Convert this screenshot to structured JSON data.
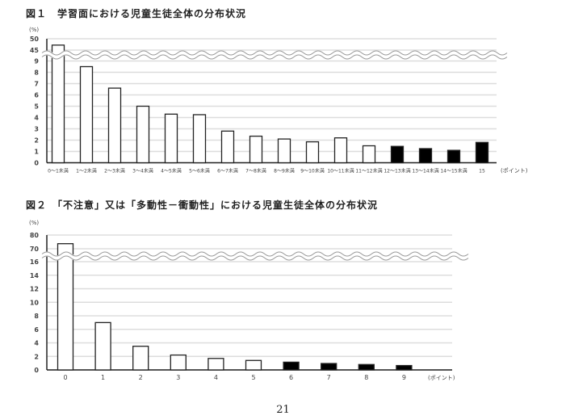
{
  "page_number": "21",
  "chart_data": [
    {
      "type": "bar",
      "title": "図１　学習面における児童生徒全体の分布状況",
      "ylabel": "(%)",
      "xlabel": "(ポイント)",
      "broken_axis": true,
      "y_lower_ticks": [
        0,
        1,
        2,
        3,
        4,
        5,
        6,
        7,
        8,
        9
      ],
      "y_upper_ticks": [
        45,
        50
      ],
      "grid": true,
      "categories": [
        "0～1未満",
        "1～2未満",
        "2～3未満",
        "3～4未満",
        "4～5未満",
        "5～6未満",
        "6～7未満",
        "7～8未満",
        "8～9未満",
        "9～10未満",
        "10～11未満",
        "11～12未満",
        "12～13未満",
        "13～14未満",
        "14～15未満",
        "15"
      ],
      "values": [
        47.2,
        8.5,
        6.6,
        5.0,
        4.3,
        4.25,
        2.8,
        2.35,
        2.1,
        1.85,
        2.2,
        1.5,
        1.45,
        1.25,
        1.1,
        1.8
      ],
      "fill": [
        "white",
        "white",
        "white",
        "white",
        "white",
        "white",
        "white",
        "white",
        "white",
        "white",
        "white",
        "white",
        "black",
        "black",
        "black",
        "black"
      ]
    },
    {
      "type": "bar",
      "title": "図２　「不注意」又は「多動性－衝動性」における児童生徒全体の分布状況",
      "ylabel": "(%)",
      "xlabel": "(ポイント)",
      "broken_axis": true,
      "y_lower_ticks": [
        0,
        2,
        4,
        6,
        8,
        10,
        12,
        14,
        16
      ],
      "y_upper_ticks": [
        70,
        80
      ],
      "grid": true,
      "categories": [
        "0",
        "1",
        "2",
        "3",
        "4",
        "5",
        "6",
        "7",
        "8",
        "9"
      ],
      "values": [
        73.7,
        7.0,
        3.5,
        2.2,
        1.7,
        1.4,
        1.15,
        0.95,
        0.8,
        0.65
      ],
      "fill": [
        "white",
        "white",
        "white",
        "white",
        "white",
        "white",
        "black",
        "black",
        "black",
        "black"
      ]
    }
  ]
}
